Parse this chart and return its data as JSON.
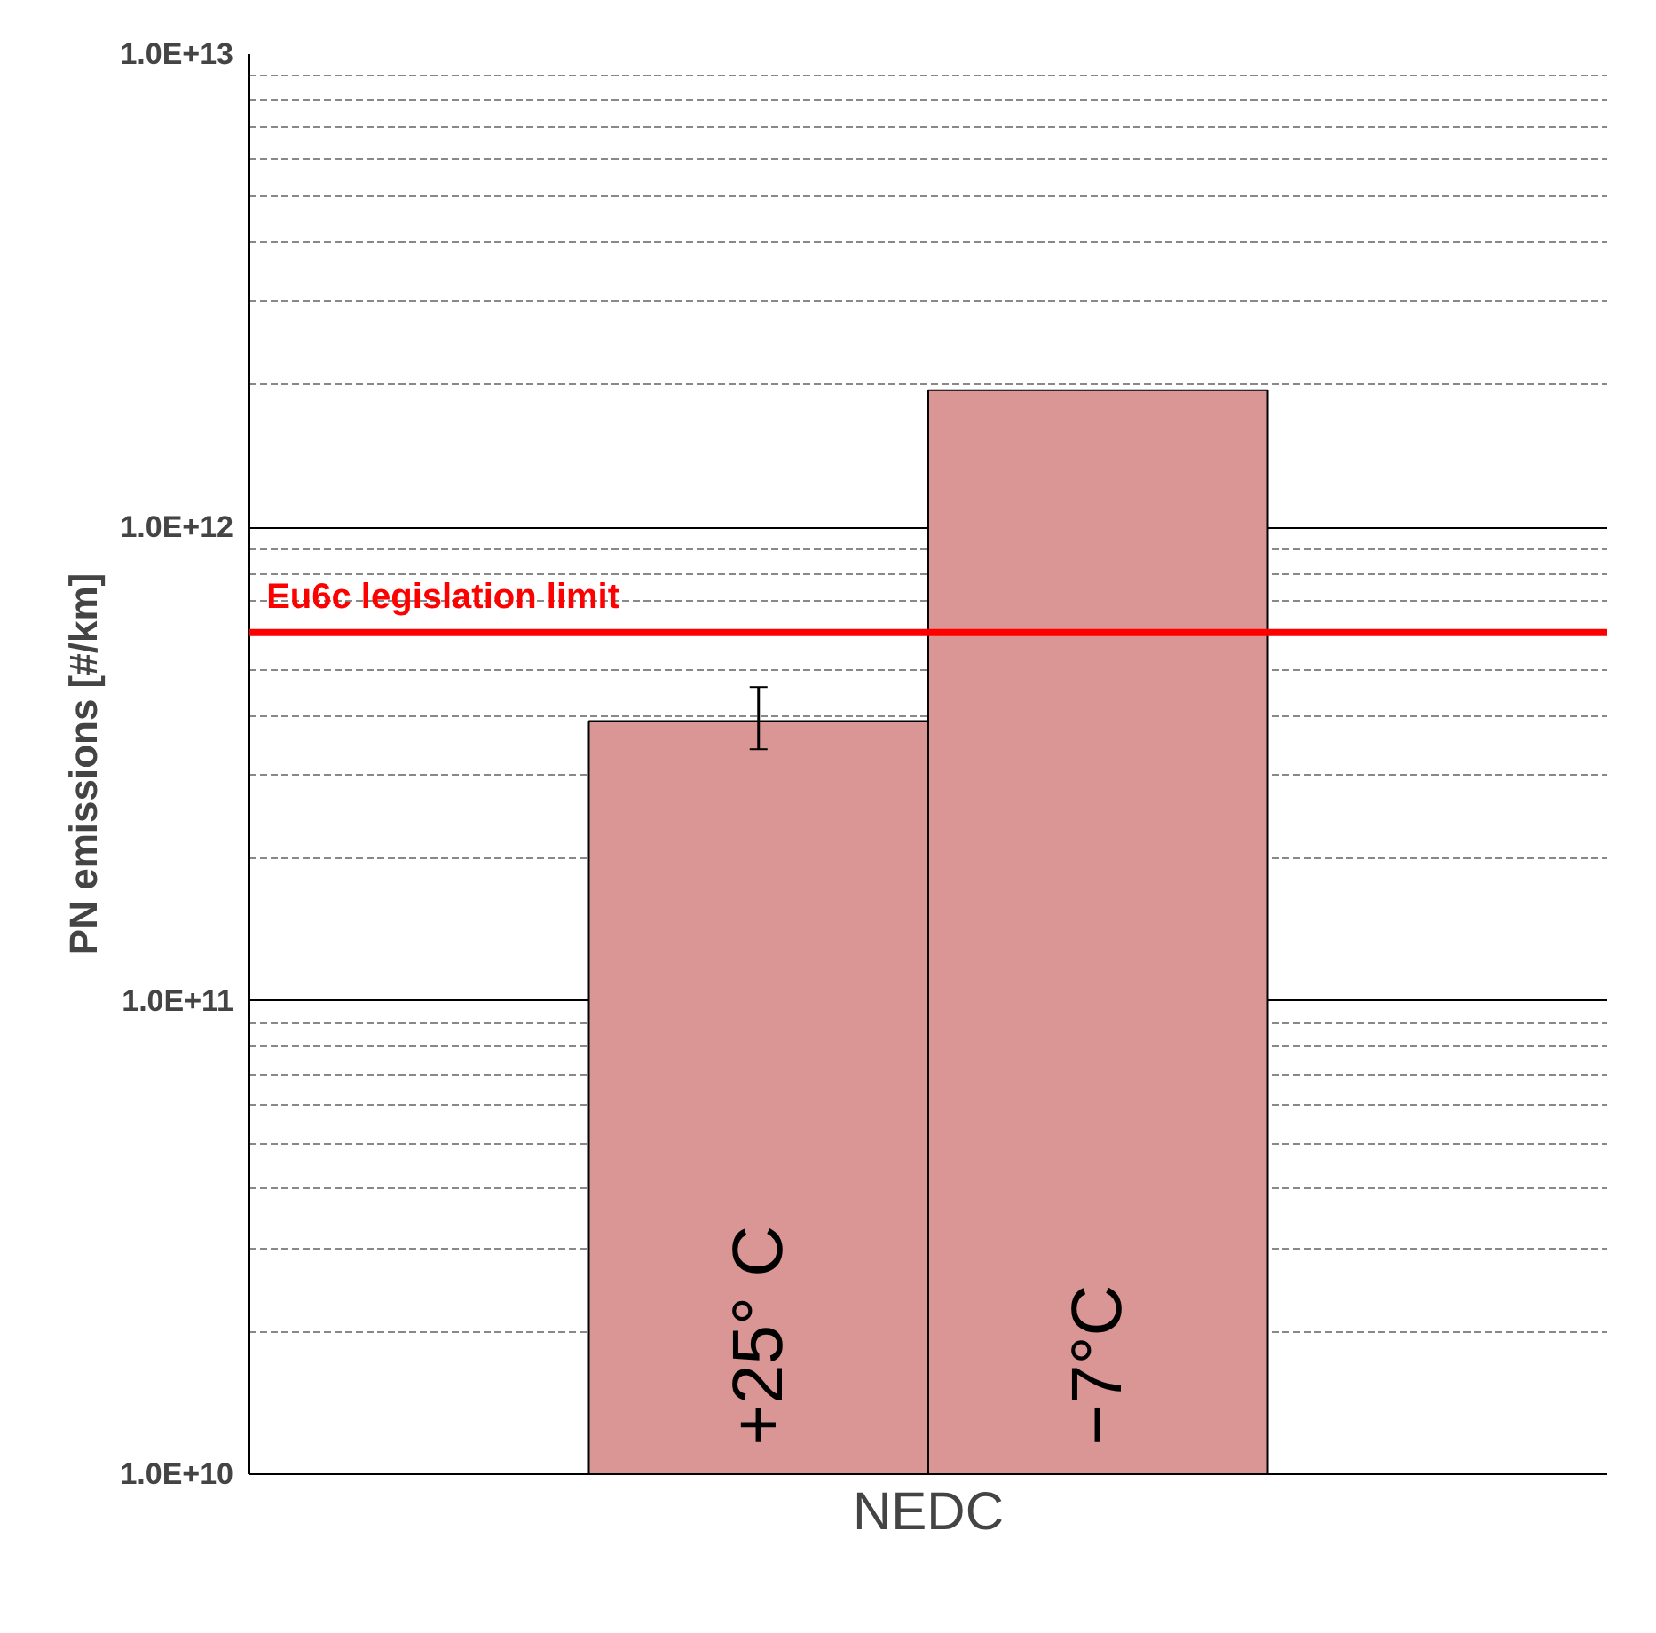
{
  "chart_data": {
    "type": "bar",
    "ylabel": "PN emissions [#/km]",
    "xlabel": "NEDC",
    "categories": [
      "+25° C",
      "−7°C"
    ],
    "values": [
      390000000000.0,
      1950000000000.0
    ],
    "errors": [
      [
        340000000000.0,
        460000000000.0
      ],
      null
    ],
    "color": "#d99694",
    "log": "y",
    "ylim": [
      10000000000.0,
      10000000000000.0
    ],
    "yticks": [
      {
        "value": 10000000000.0,
        "label": "1.0E+10"
      },
      {
        "value": 100000000000.0,
        "label": "1.0E+11"
      },
      {
        "value": 1000000000000.0,
        "label": "1.0E+12"
      },
      {
        "value": 10000000000000.0,
        "label": "1.0E+13"
      }
    ],
    "grid": "y",
    "ref_lines": [
      {
        "axis": "y",
        "value": 600000000000.0,
        "label": "Eu6c legislation limit",
        "color": "#ff0000"
      }
    ]
  }
}
